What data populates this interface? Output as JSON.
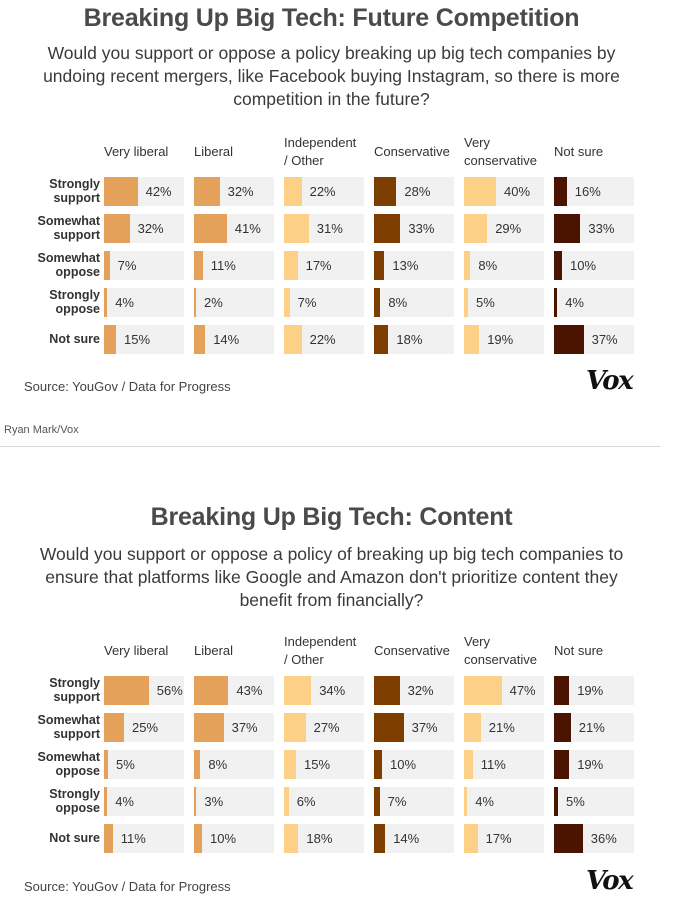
{
  "colors": {
    "very_liberal": "#e3a159",
    "liberal": "#e3a159",
    "independent_other": "#fdd088",
    "conservative": "#7d3e00",
    "very_conservative": "#fdd088",
    "not_sure": "#4b1400",
    "cell_bg": "#f1f1f1"
  },
  "credit": "Ryan Mark/Vox",
  "chart_data": [
    {
      "type": "table",
      "title": "Breaking Up Big Tech: Future Competition",
      "subtitle": "Would you support or oppose a policy breaking up big tech companies by undoing recent mergers, like Facebook buying Instagram, so there is more competition in the future?",
      "columns": [
        "Very liberal",
        "Liberal",
        "Independent\n/ Other",
        "Conservative",
        "Very\nconservative",
        "Not sure"
      ],
      "rows": [
        "Strongly\nsupport",
        "Somewhat\nsupport",
        "Somewhat\noppose",
        "Strongly\noppose",
        "Not sure"
      ],
      "values": [
        [
          42,
          32,
          22,
          28,
          40,
          16
        ],
        [
          32,
          41,
          31,
          33,
          29,
          33
        ],
        [
          7,
          11,
          17,
          13,
          8,
          10
        ],
        [
          4,
          2,
          7,
          8,
          5,
          4
        ],
        [
          15,
          14,
          22,
          18,
          19,
          37
        ]
      ],
      "unit": "%",
      "source": "Source: YouGov / Data for Progress",
      "logo": "Vox"
    },
    {
      "type": "table",
      "title": "Breaking Up Big Tech: Content",
      "subtitle": "Would you support or oppose a policy of breaking up big tech companies to ensure that platforms like Google and Amazon don't prioritize content they benefit from financially?",
      "columns": [
        "Very liberal",
        "Liberal",
        "Independent\n/ Other",
        "Conservative",
        "Very\nconservative",
        "Not sure"
      ],
      "rows": [
        "Strongly\nsupport",
        "Somewhat\nsupport",
        "Somewhat\noppose",
        "Strongly\noppose",
        "Not sure"
      ],
      "values": [
        [
          56,
          43,
          34,
          32,
          47,
          19
        ],
        [
          25,
          37,
          27,
          37,
          21,
          21
        ],
        [
          5,
          8,
          15,
          10,
          11,
          19
        ],
        [
          4,
          3,
          6,
          7,
          4,
          5
        ],
        [
          11,
          10,
          18,
          14,
          17,
          36
        ]
      ],
      "unit": "%",
      "source": "Source: YouGov / Data for Progress",
      "logo": "Vox"
    }
  ]
}
